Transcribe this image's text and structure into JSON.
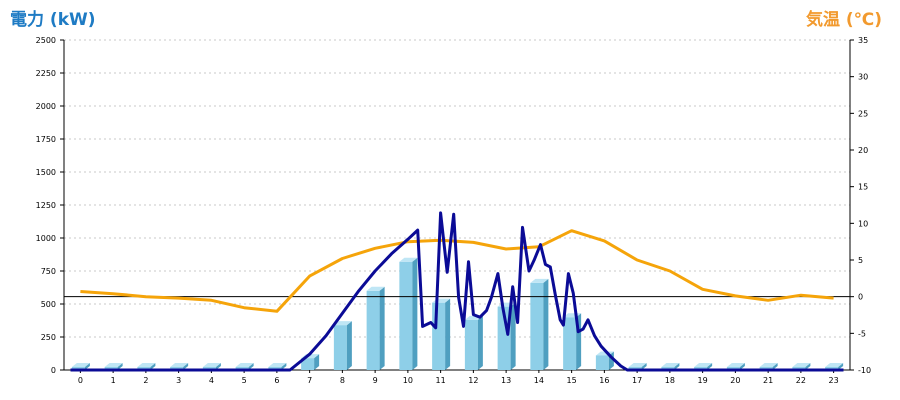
{
  "colors": {
    "left_axis_title": "#1e7bc4",
    "right_axis_title": "#f29a2e",
    "bar_front": "#8ecfe8",
    "bar_side": "#4f9fc0",
    "bar_top": "#bfe6f5",
    "power_line": "#0b0b96",
    "temp_line": "#f5a40a",
    "grid": "#c8c8c8",
    "zero_line": "#000000"
  },
  "chart_data": {
    "type": "bar",
    "title": "",
    "ylabel": "電力 (kW)",
    "y2label": "気温 (℃)",
    "xlabel": "",
    "categories": [
      "0",
      "1",
      "2",
      "3",
      "4",
      "5",
      "6",
      "7",
      "8",
      "9",
      "10",
      "11",
      "12",
      "13",
      "14",
      "15",
      "16",
      "17",
      "18",
      "19",
      "20",
      "21",
      "22",
      "23"
    ],
    "ylim": [
      0,
      2500
    ],
    "y2lim": [
      -10,
      35
    ],
    "y_ticks": [
      "0",
      "250",
      "500",
      "750",
      "1000",
      "1250",
      "1500",
      "1750",
      "2000",
      "2250",
      "2500"
    ],
    "y2_ticks": [
      "-10",
      "-5",
      "0",
      "5",
      "10",
      "15",
      "20",
      "25",
      "30",
      "35"
    ],
    "grid": true,
    "series": [
      {
        "kind": "bar",
        "values": [
          0,
          0,
          0,
          0,
          0,
          0,
          0,
          90,
          340,
          600,
          820,
          510,
          380,
          480,
          660,
          400,
          110,
          0,
          0,
          0,
          0,
          0,
          0,
          0
        ]
      },
      {
        "kind": "line",
        "axis": "left",
        "points": [
          [
            -0.3,
            0
          ],
          [
            6.4,
            0
          ],
          [
            7.0,
            120
          ],
          [
            7.5,
            260
          ],
          [
            8.0,
            430
          ],
          [
            8.5,
            600
          ],
          [
            9.0,
            750
          ],
          [
            9.5,
            880
          ],
          [
            10.0,
            990
          ],
          [
            10.3,
            1060
          ],
          [
            10.45,
            330
          ],
          [
            10.7,
            360
          ],
          [
            10.85,
            320
          ],
          [
            11.0,
            1190
          ],
          [
            11.2,
            740
          ],
          [
            11.4,
            1180
          ],
          [
            11.55,
            550
          ],
          [
            11.7,
            330
          ],
          [
            11.85,
            820
          ],
          [
            12.0,
            420
          ],
          [
            12.2,
            400
          ],
          [
            12.4,
            450
          ],
          [
            12.55,
            550
          ],
          [
            12.75,
            730
          ],
          [
            12.9,
            470
          ],
          [
            13.05,
            270
          ],
          [
            13.2,
            630
          ],
          [
            13.35,
            360
          ],
          [
            13.5,
            1080
          ],
          [
            13.7,
            750
          ],
          [
            13.85,
            830
          ],
          [
            14.05,
            950
          ],
          [
            14.2,
            800
          ],
          [
            14.35,
            780
          ],
          [
            14.5,
            570
          ],
          [
            14.65,
            380
          ],
          [
            14.75,
            340
          ],
          [
            14.9,
            730
          ],
          [
            15.05,
            580
          ],
          [
            15.2,
            290
          ],
          [
            15.35,
            310
          ],
          [
            15.5,
            380
          ],
          [
            15.7,
            260
          ],
          [
            15.9,
            180
          ],
          [
            16.2,
            100
          ],
          [
            16.5,
            30
          ],
          [
            16.7,
            0
          ],
          [
            23.3,
            0
          ]
        ]
      },
      {
        "kind": "line",
        "axis": "right",
        "points": [
          [
            0,
            0.7
          ],
          [
            1,
            0.4
          ],
          [
            2,
            0
          ],
          [
            3,
            -0.2
          ],
          [
            4,
            -0.5
          ],
          [
            5,
            -1.5
          ],
          [
            6,
            -2
          ],
          [
            7,
            2.8
          ],
          [
            8,
            5.2
          ],
          [
            9,
            6.6
          ],
          [
            10,
            7.5
          ],
          [
            11,
            7.7
          ],
          [
            12,
            7.4
          ],
          [
            13,
            6.5
          ],
          [
            14,
            6.8
          ],
          [
            15,
            9
          ],
          [
            16,
            7.6
          ],
          [
            17,
            5
          ],
          [
            18,
            3.5
          ],
          [
            19,
            1
          ],
          [
            20,
            0.1
          ],
          [
            21,
            -0.5
          ],
          [
            22,
            0.2
          ],
          [
            23,
            -0.2
          ]
        ]
      }
    ]
  }
}
